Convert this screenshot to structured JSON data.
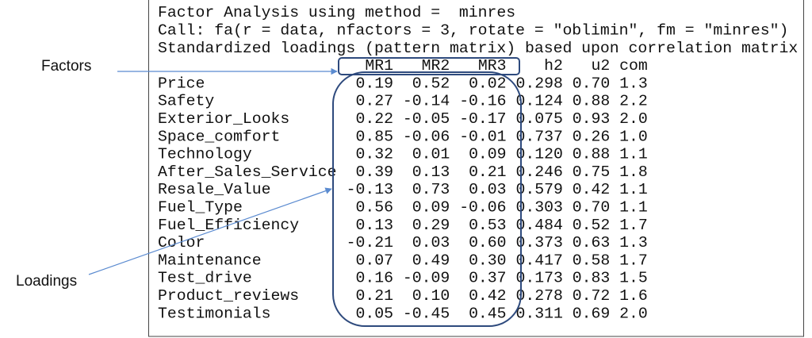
{
  "lines": [
    "Factor Analysis using method =  minres",
    "Call: fa(r = data, nfactors = 3, rotate = \"oblimin\", fm = \"minres\")",
    "Standardized loadings (pattern matrix) based upon correlation matrix"
  ],
  "table": {
    "header": [
      "MR1",
      "MR2",
      "MR3",
      "h2",
      "u2",
      "com"
    ],
    "rows": [
      [
        "Price",
        "0.19",
        "0.52",
        "0.02",
        "0.298",
        "0.70",
        "1.3"
      ],
      [
        "Safety",
        "0.27",
        "-0.14",
        "-0.16",
        "0.124",
        "0.88",
        "2.2"
      ],
      [
        "Exterior_Looks",
        "0.22",
        "-0.05",
        "-0.17",
        "0.075",
        "0.93",
        "2.0"
      ],
      [
        "Space_comfort",
        "0.85",
        "-0.06",
        "-0.01",
        "0.737",
        "0.26",
        "1.0"
      ],
      [
        "Technology",
        "0.32",
        "0.01",
        "0.09",
        "0.120",
        "0.88",
        "1.1"
      ],
      [
        "After_Sales_Service",
        "0.39",
        "0.13",
        "0.21",
        "0.246",
        "0.75",
        "1.8"
      ],
      [
        "Resale_Value",
        "-0.13",
        "0.73",
        "0.03",
        "0.579",
        "0.42",
        "1.1"
      ],
      [
        "Fuel_Type",
        "0.56",
        "0.09",
        "-0.06",
        "0.303",
        "0.70",
        "1.1"
      ],
      [
        "Fuel_Efficiency",
        "0.13",
        "0.29",
        "0.53",
        "0.484",
        "0.52",
        "1.7"
      ],
      [
        "Color",
        "-0.21",
        "0.03",
        "0.60",
        "0.373",
        "0.63",
        "1.3"
      ],
      [
        "Maintenance",
        "0.07",
        "0.49",
        "0.30",
        "0.417",
        "0.58",
        "1.7"
      ],
      [
        "Test_drive",
        "0.16",
        "-0.09",
        "0.37",
        "0.173",
        "0.83",
        "1.5"
      ],
      [
        "Product_reviews",
        "0.21",
        "0.10",
        "0.42",
        "0.278",
        "0.72",
        "1.6"
      ],
      [
        "Testimonials",
        "0.05",
        "-0.45",
        "0.45",
        "0.311",
        "0.69",
        "2.0"
      ]
    ]
  },
  "annotations": {
    "factors": "Factors",
    "loadings": "Loadings"
  }
}
